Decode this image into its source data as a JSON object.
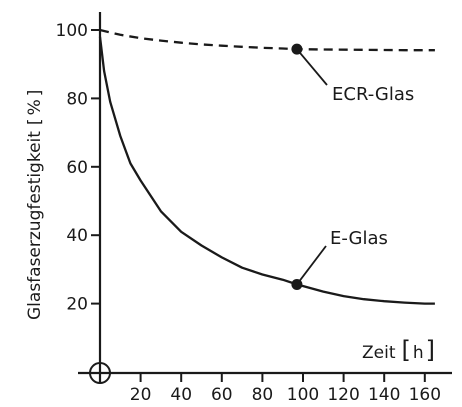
{
  "chart_data": {
    "type": "line",
    "xlabel": "Zeit",
    "xunit": "h",
    "ylabel": "Glasfaserzugfestigkeit",
    "yunit": "%",
    "xlim": [
      0,
      165
    ],
    "ylim": [
      0,
      104
    ],
    "x_ticks": [
      20,
      40,
      60,
      80,
      100,
      120,
      140,
      160
    ],
    "y_ticks": [
      20,
      40,
      60,
      80,
      100
    ],
    "grid": false,
    "series": [
      {
        "name": "ECR-Glas",
        "style": "dashed",
        "x": [
          0,
          10,
          20,
          30,
          40,
          50,
          60,
          70,
          80,
          90,
          97,
          110,
          130,
          150,
          165
        ],
        "y": [
          100,
          98.6,
          97.6,
          96.9,
          96.3,
          95.8,
          95.4,
          95.1,
          94.8,
          94.6,
          94.4,
          94.3,
          94.2,
          94.1,
          94.1
        ],
        "marker": {
          "x": 97,
          "y": 94.4
        }
      },
      {
        "name": "E-Glas",
        "style": "solid",
        "x": [
          0,
          2,
          5,
          10,
          15,
          20,
          30,
          40,
          50,
          60,
          70,
          80,
          90,
          97,
          110,
          120,
          130,
          140,
          150,
          160,
          165
        ],
        "y": [
          98,
          88,
          79,
          69,
          61,
          56,
          47,
          41,
          37,
          33.5,
          30.5,
          28.5,
          27,
          25.6,
          23.5,
          22.2,
          21.3,
          20.7,
          20.3,
          20,
          20
        ],
        "marker": {
          "x": 97,
          "y": 25.6
        }
      }
    ]
  }
}
